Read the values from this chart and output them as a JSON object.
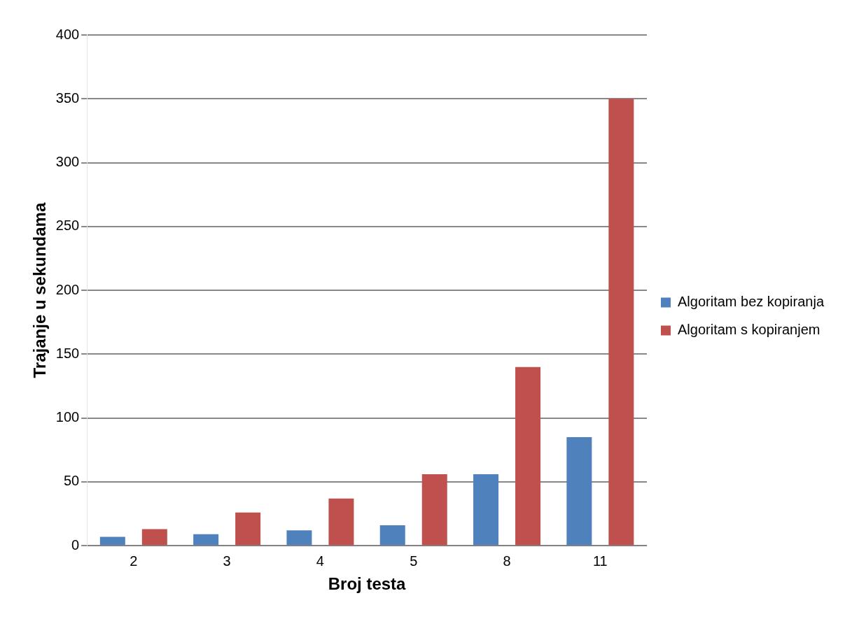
{
  "chart_data": {
    "type": "bar",
    "xlabel": "Broj testa",
    "ylabel": "Trajanje u sekundama",
    "categories": [
      "2",
      "3",
      "4",
      "5",
      "8",
      "11"
    ],
    "series": [
      {
        "name": "Algoritam bez kopiranja",
        "color": "#4f81bd",
        "values": [
          7,
          9,
          12,
          16,
          56,
          85
        ]
      },
      {
        "name": "Algoritam s kopiranjem",
        "color": "#c0504d",
        "values": [
          13,
          26,
          37,
          56,
          140,
          350
        ]
      }
    ],
    "ylim": [
      0,
      400
    ],
    "yticks": [
      0,
      50,
      100,
      150,
      200,
      250,
      300,
      350,
      400
    ],
    "grid": "y",
    "legend": "right"
  }
}
